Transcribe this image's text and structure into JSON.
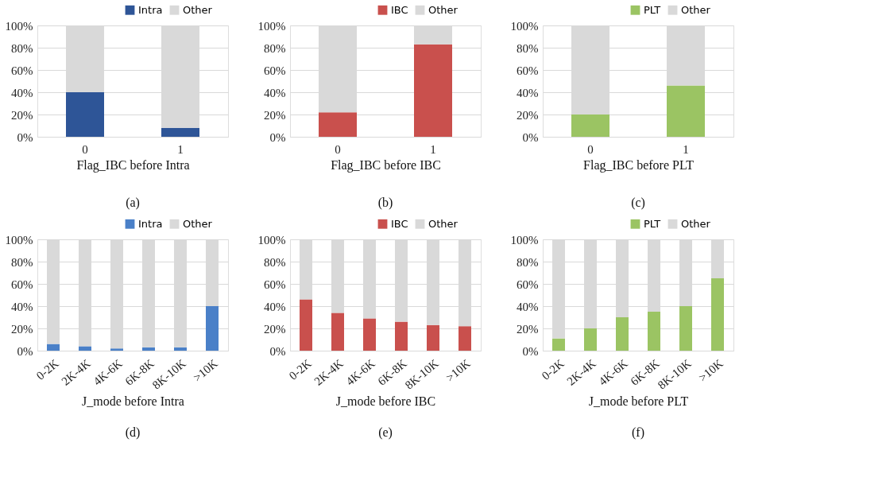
{
  "chart_data": [
    {
      "type": "bar",
      "stacked": true,
      "categories": [
        "0",
        "1"
      ],
      "xlabel": "Flag_IBC before Intra",
      "annotations": [
        "(a)"
      ],
      "legend": "top right",
      "grid": "y",
      "ylim": [
        0,
        100
      ],
      "yticks": [
        {
          "value": 0,
          "label": "0%"
        },
        {
          "value": 20,
          "label": "20%"
        },
        {
          "value": 40,
          "label": "40%"
        },
        {
          "value": 60,
          "label": "60%"
        },
        {
          "value": 80,
          "label": "80%"
        },
        {
          "value": 100,
          "label": "100%"
        }
      ],
      "series": [
        {
          "name": "Intra",
          "color": "#2e5597",
          "values": [
            40,
            8
          ]
        },
        {
          "name": "Other",
          "color": "#d9d9d9",
          "values": [
            60,
            92
          ]
        }
      ]
    },
    {
      "type": "bar",
      "stacked": true,
      "categories": [
        "0",
        "1"
      ],
      "xlabel": "Flag_IBC before IBC",
      "annotations": [
        "(b)"
      ],
      "legend": "top right",
      "grid": "y",
      "ylim": [
        0,
        100
      ],
      "yticks": [
        {
          "value": 0,
          "label": "0%"
        },
        {
          "value": 20,
          "label": "20%"
        },
        {
          "value": 40,
          "label": "40%"
        },
        {
          "value": 60,
          "label": "60%"
        },
        {
          "value": 80,
          "label": "80%"
        },
        {
          "value": 100,
          "label": "100%"
        }
      ],
      "series": [
        {
          "name": "IBC",
          "color": "#c9504d",
          "values": [
            22,
            83
          ]
        },
        {
          "name": "Other",
          "color": "#d9d9d9",
          "values": [
            78,
            17
          ]
        }
      ]
    },
    {
      "type": "bar",
      "stacked": true,
      "categories": [
        "0",
        "1"
      ],
      "xlabel": "Flag_IBC before PLT",
      "annotations": [
        "(c)"
      ],
      "legend": "top right",
      "grid": "y",
      "ylim": [
        0,
        100
      ],
      "yticks": [
        {
          "value": 0,
          "label": "0%"
        },
        {
          "value": 20,
          "label": "20%"
        },
        {
          "value": 40,
          "label": "40%"
        },
        {
          "value": 60,
          "label": "60%"
        },
        {
          "value": 80,
          "label": "80%"
        },
        {
          "value": 100,
          "label": "100%"
        }
      ],
      "series": [
        {
          "name": "PLT",
          "color": "#9bc463",
          "values": [
            20,
            46
          ]
        },
        {
          "name": "Other",
          "color": "#d9d9d9",
          "values": [
            80,
            54
          ]
        }
      ]
    },
    {
      "type": "bar",
      "stacked": true,
      "categories": [
        "0-2K",
        "2K-4K",
        "4K-6K",
        "6K-8K",
        "8K-10K",
        ">10K"
      ],
      "xlabel": "J_mode before Intra",
      "annotations": [
        "(d)"
      ],
      "legend": "top right",
      "grid": "y",
      "ylim": [
        0,
        100
      ],
      "yticks": [
        {
          "value": 0,
          "label": "0%"
        },
        {
          "value": 20,
          "label": "20%"
        },
        {
          "value": 40,
          "label": "40%"
        },
        {
          "value": 60,
          "label": "60%"
        },
        {
          "value": 80,
          "label": "80%"
        },
        {
          "value": 100,
          "label": "100%"
        }
      ],
      "series": [
        {
          "name": "Intra",
          "color": "#4a80c8",
          "values": [
            6,
            4,
            2,
            3,
            3,
            40
          ]
        },
        {
          "name": "Other",
          "color": "#d9d9d9",
          "values": [
            94,
            96,
            98,
            97,
            97,
            60
          ]
        }
      ]
    },
    {
      "type": "bar",
      "stacked": true,
      "categories": [
        "0-2K",
        "2K-4K",
        "4K-6K",
        "6K-8K",
        "8K-10K",
        ">10K"
      ],
      "xlabel": "J_mode before IBC",
      "annotations": [
        "(e)"
      ],
      "legend": "top right",
      "grid": "y",
      "ylim": [
        0,
        100
      ],
      "yticks": [
        {
          "value": 0,
          "label": "0%"
        },
        {
          "value": 20,
          "label": "20%"
        },
        {
          "value": 40,
          "label": "40%"
        },
        {
          "value": 60,
          "label": "60%"
        },
        {
          "value": 80,
          "label": "80%"
        },
        {
          "value": 100,
          "label": "100%"
        }
      ],
      "series": [
        {
          "name": "IBC",
          "color": "#c9504d",
          "values": [
            46,
            34,
            29,
            26,
            23,
            22
          ]
        },
        {
          "name": "Other",
          "color": "#d9d9d9",
          "values": [
            54,
            66,
            71,
            74,
            77,
            78
          ]
        }
      ]
    },
    {
      "type": "bar",
      "stacked": true,
      "categories": [
        "0-2K",
        "2K-4K",
        "4K-6K",
        "6K-8K",
        "8K-10K",
        ">10K"
      ],
      "xlabel": "J_mode before PLT",
      "annotations": [
        "(f)"
      ],
      "legend": "top right",
      "grid": "y",
      "ylim": [
        0,
        100
      ],
      "yticks": [
        {
          "value": 0,
          "label": "0%"
        },
        {
          "value": 20,
          "label": "20%"
        },
        {
          "value": 40,
          "label": "40%"
        },
        {
          "value": 60,
          "label": "60%"
        },
        {
          "value": 80,
          "label": "80%"
        },
        {
          "value": 100,
          "label": "100%"
        }
      ],
      "series": [
        {
          "name": "PLT",
          "color": "#9bc463",
          "values": [
            11,
            20,
            30,
            35,
            40,
            65
          ]
        },
        {
          "name": "Other",
          "color": "#d9d9d9",
          "values": [
            89,
            80,
            70,
            65,
            60,
            35
          ]
        }
      ]
    }
  ]
}
